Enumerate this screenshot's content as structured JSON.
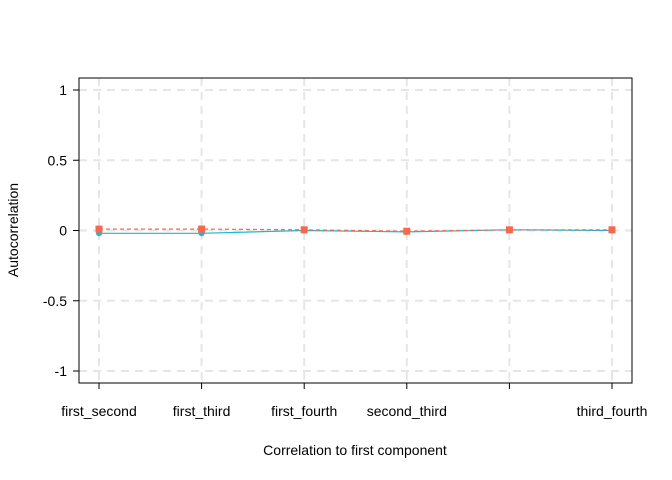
{
  "chart_data": {
    "type": "line",
    "title": "",
    "xlabel": "Correlation to first component",
    "ylabel": "Autocorrelation",
    "categories": [
      "first_second",
      "first_third",
      "first_fourth",
      "second_third",
      "",
      "third_fourth"
    ],
    "ylim": [
      -1,
      1
    ],
    "yticks": [
      1,
      0.5,
      0,
      -0.5,
      -1
    ],
    "ytick_labels": [
      "1",
      "0.5",
      "0",
      "-0.5",
      "-1"
    ],
    "grid": true,
    "legend": "none",
    "series": [
      {
        "values": [
          0.01,
          0.01,
          0.005,
          -0.005,
          0.005,
          0.005
        ],
        "color": "#F8684A",
        "marker": "square",
        "line": "dashed"
      },
      {
        "values": [
          -0.02,
          -0.02,
          0.0,
          -0.01,
          0.005,
          0.0
        ],
        "color": "#1FB6D6",
        "marker": "circle",
        "line": "solid"
      }
    ]
  }
}
